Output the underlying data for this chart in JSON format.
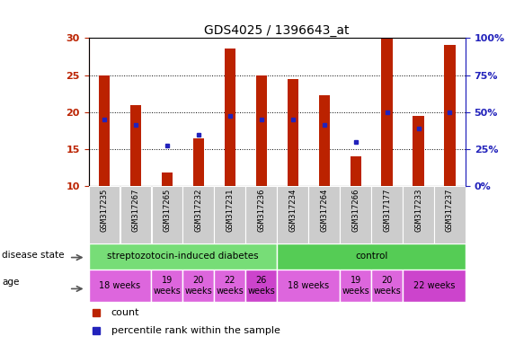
{
  "title": "GDS4025 / 1396643_at",
  "samples": [
    "GSM317235",
    "GSM317267",
    "GSM317265",
    "GSM317232",
    "GSM317231",
    "GSM317236",
    "GSM317234",
    "GSM317264",
    "GSM317266",
    "GSM317177",
    "GSM317233",
    "GSM317237"
  ],
  "counts": [
    25.0,
    21.0,
    11.8,
    16.5,
    28.6,
    25.0,
    24.5,
    22.3,
    14.0,
    30.0,
    19.5,
    29.0
  ],
  "percentile_values": [
    19.0,
    18.3,
    15.5,
    17.0,
    19.5,
    19.0,
    19.0,
    18.3,
    16.0,
    20.0,
    17.8,
    20.0
  ],
  "ylim_left": [
    10,
    30
  ],
  "ylim_right": [
    0,
    100
  ],
  "yticks_left": [
    10,
    15,
    20,
    25,
    30
  ],
  "ytick_labels_left": [
    "10",
    "15",
    "20",
    "25",
    "30"
  ],
  "yticks_right_vals": [
    0,
    25,
    50,
    75,
    100
  ],
  "ytick_labels_right": [
    "0%",
    "25%",
    "50%",
    "75%",
    "100%"
  ],
  "bar_color": "#bb2200",
  "dot_color": "#2222bb",
  "disease_state_groups": [
    {
      "label": "streptozotocin-induced diabetes",
      "start": 0,
      "end": 6,
      "color": "#77dd77"
    },
    {
      "label": "control",
      "start": 6,
      "end": 12,
      "color": "#55cc55"
    }
  ],
  "age_groups": [
    {
      "label": "18 weeks",
      "start": 0,
      "end": 2,
      "color": "#dd66dd"
    },
    {
      "label": "19\nweeks",
      "start": 2,
      "end": 3,
      "color": "#dd66dd"
    },
    {
      "label": "20\nweeks",
      "start": 3,
      "end": 4,
      "color": "#dd66dd"
    },
    {
      "label": "22\nweeks",
      "start": 4,
      "end": 5,
      "color": "#dd66dd"
    },
    {
      "label": "26\nweeks",
      "start": 5,
      "end": 6,
      "color": "#cc44cc"
    },
    {
      "label": "18 weeks",
      "start": 6,
      "end": 8,
      "color": "#dd66dd"
    },
    {
      "label": "19\nweeks",
      "start": 8,
      "end": 9,
      "color": "#dd66dd"
    },
    {
      "label": "20\nweeks",
      "start": 9,
      "end": 10,
      "color": "#dd66dd"
    },
    {
      "label": "22 weeks",
      "start": 10,
      "end": 12,
      "color": "#cc44cc"
    }
  ],
  "legend_count_label": "count",
  "legend_percentile_label": "percentile rank within the sample",
  "disease_state_label": "disease state",
  "age_label": "age",
  "background_color": "#ffffff",
  "tick_area_bg": "#cccccc"
}
